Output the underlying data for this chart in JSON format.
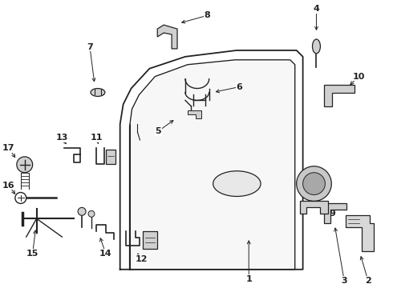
{
  "bg_color": "#ffffff",
  "line_color": "#222222",
  "label_color": "#000000",
  "figsize": [
    4.9,
    3.6
  ],
  "dpi": 100
}
